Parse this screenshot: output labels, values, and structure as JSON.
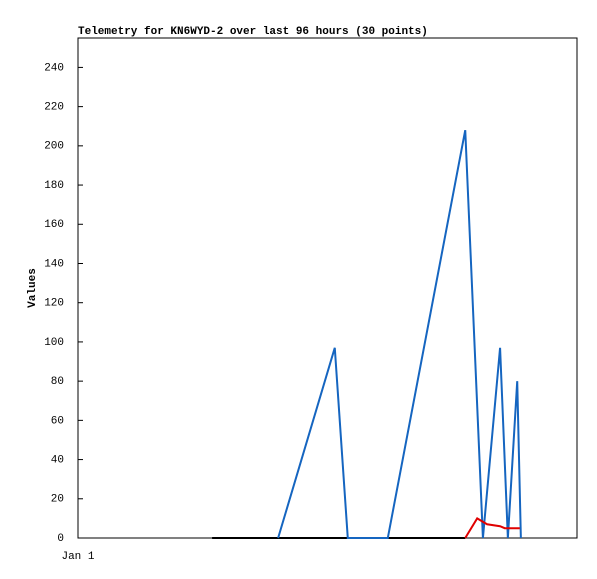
{
  "chart_data": {
    "type": "line",
    "title": "Telemetry for KN6WYD-2 over last 96 hours (30 points)",
    "y_label": "Values",
    "xlim": [
      0,
      96
    ],
    "xticks": [
      {
        "value": 0,
        "label": "Jan 1"
      }
    ],
    "ylim": [
      0,
      255
    ],
    "yticks": [
      0,
      20,
      40,
      60,
      80,
      100,
      120,
      140,
      160,
      180,
      200,
      220,
      240
    ],
    "series": [
      {
        "color": "#000000",
        "x": [
          25.8,
          38.5,
          74.5
        ],
        "values": [
          0,
          0,
          0
        ]
      },
      {
        "color": "#1565c0",
        "x": [
          38.5,
          49.4,
          51.9,
          59.6,
          74.5,
          77.9,
          81.2,
          82.7,
          84.5,
          85.2
        ],
        "values": [
          0,
          97,
          0,
          0,
          208,
          0,
          97,
          0,
          80,
          0
        ]
      },
      {
        "color": "#e00000",
        "x": [
          74.5,
          76.8,
          78.7,
          81.2,
          82.1,
          85.0
        ],
        "values": [
          0,
          10,
          7,
          6,
          5,
          5
        ]
      }
    ]
  }
}
